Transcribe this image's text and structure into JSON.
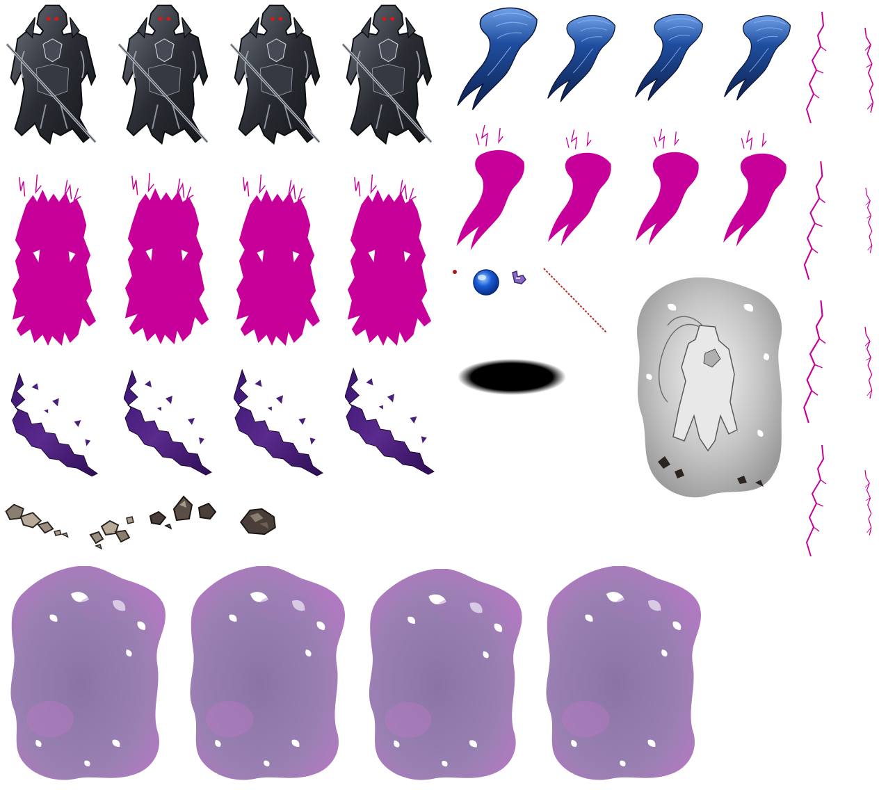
{
  "sheet": {
    "background": "#ffffff",
    "colors": {
      "armor_dark": "#2a2d33",
      "armor_mid": "#5a606b",
      "armor_light": "#c9ced6",
      "eye_red": "#d11a1a",
      "plume_dark": "#0e2250",
      "plume_mid": "#1f4d9e",
      "plume_light": "#6fa0e8",
      "magenta_mask": "#c8009a",
      "purple_dark": "#2e0d55",
      "purple_mid": "#5a2a8c",
      "rock_dark": "#2b2420",
      "rock_light": "#b8aa98",
      "orb_blue": "#1a5ad6",
      "orb_highlight": "#9fd0ff",
      "shadow": "#000000",
      "smoke_purple": "#8c72a8",
      "smoke_pink": "#b07ac0",
      "ghost_gray": "#9a9a9a"
    },
    "rows": [
      {
        "id": "armored-knight",
        "frames": 4,
        "icon": "armored-knight-icon"
      },
      {
        "id": "plume",
        "frames": 4,
        "icon": "hair-plume-icon"
      },
      {
        "id": "knight-mask",
        "frames": 4,
        "icon": "magenta-silhouette-icon"
      },
      {
        "id": "plume-mask",
        "frames": 4,
        "icon": "magenta-plume-icon"
      },
      {
        "id": "dark-slash",
        "frames": 4,
        "icon": "purple-slash-icon"
      },
      {
        "id": "rubble",
        "frames": 4,
        "icon": "rock-debris-icon"
      },
      {
        "id": "smoke-cloud",
        "frames": 4,
        "icon": "purple-smoke-icon"
      },
      {
        "id": "lightning-strands",
        "frames": 8,
        "icon": "magenta-lightning-icon"
      }
    ],
    "singles": [
      {
        "id": "small-red-dot",
        "icon": "red-dot-icon"
      },
      {
        "id": "blue-orb",
        "icon": "blue-orb-icon"
      },
      {
        "id": "small-glyph",
        "icon": "purple-glyph-icon"
      },
      {
        "id": "red-dotted-line",
        "icon": "red-line-icon"
      },
      {
        "id": "ground-shadow",
        "icon": "shadow-ellipse-icon"
      },
      {
        "id": "ghost-knight",
        "icon": "ghost-knight-icon"
      }
    ]
  }
}
